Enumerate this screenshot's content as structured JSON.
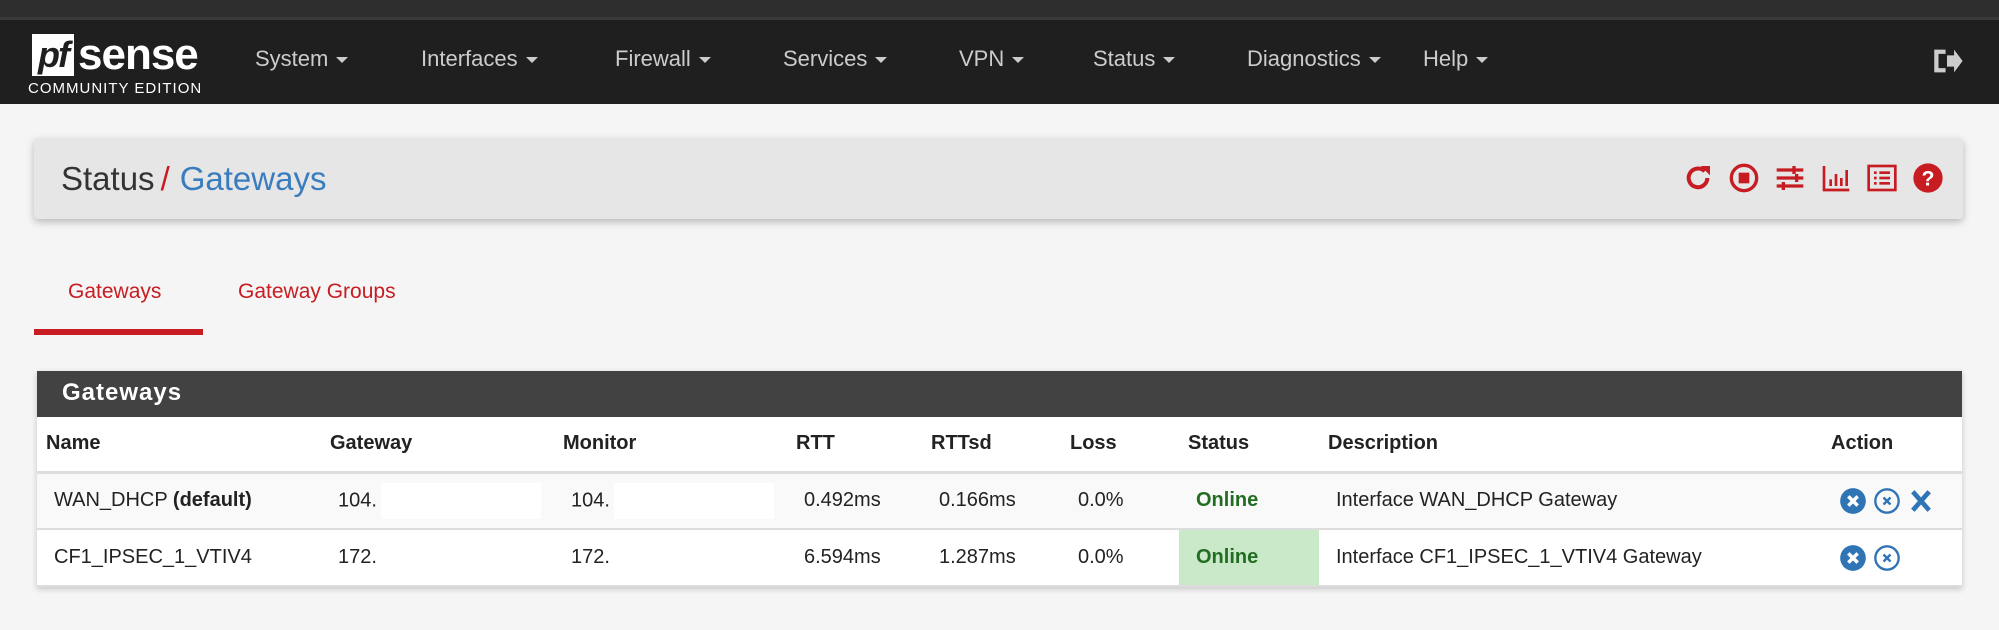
{
  "brand": {
    "logo_text": "pfsense",
    "edition": "COMMUNITY EDITION"
  },
  "nav": [
    "System",
    "Interfaces",
    "Firewall",
    "Services",
    "VPN",
    "Status",
    "Diagnostics",
    "Help"
  ],
  "breadcrumb": {
    "parent": "Status",
    "separator": "/",
    "current": "Gateways"
  },
  "header_icons": [
    "refresh-icon",
    "stop-circle-icon",
    "sliders-icon",
    "bar-chart-icon",
    "list-icon",
    "help-icon"
  ],
  "tabs": [
    {
      "label": "Gateways",
      "active": true
    },
    {
      "label": "Gateway Groups",
      "active": false
    }
  ],
  "panel": {
    "title": "Gateways",
    "columns": [
      "Name",
      "Gateway",
      "Monitor",
      "RTT",
      "RTTsd",
      "Loss",
      "Status",
      "Description",
      "Action"
    ],
    "rows": [
      {
        "name": "WAN_DHCP",
        "name_suffix": "(default)",
        "gateway": "104.",
        "monitor": "104.",
        "rtt": "0.492ms",
        "rttsd": "0.166ms",
        "loss": "0.0%",
        "status": "Online",
        "description": "Interface WAN_DHCP Gateway",
        "actions": [
          "kill-states-icon",
          "reset-icon",
          "delete-icon"
        ]
      },
      {
        "name": "CF1_IPSEC_1_VTIV4",
        "name_suffix": "",
        "gateway": "172.",
        "monitor": "172.",
        "rtt": "6.594ms",
        "rttsd": "1.287ms",
        "loss": "0.0%",
        "status": "Online",
        "description": "Interface CF1_IPSEC_1_VTIV4 Gateway",
        "actions": [
          "kill-states-icon",
          "reset-icon"
        ]
      }
    ]
  },
  "colors": {
    "accent": "#c71c22",
    "link": "#3a7dbf",
    "online_bg": "#c9e9c9",
    "online_text": "#236d23",
    "navbar": "#1f1f1f"
  }
}
